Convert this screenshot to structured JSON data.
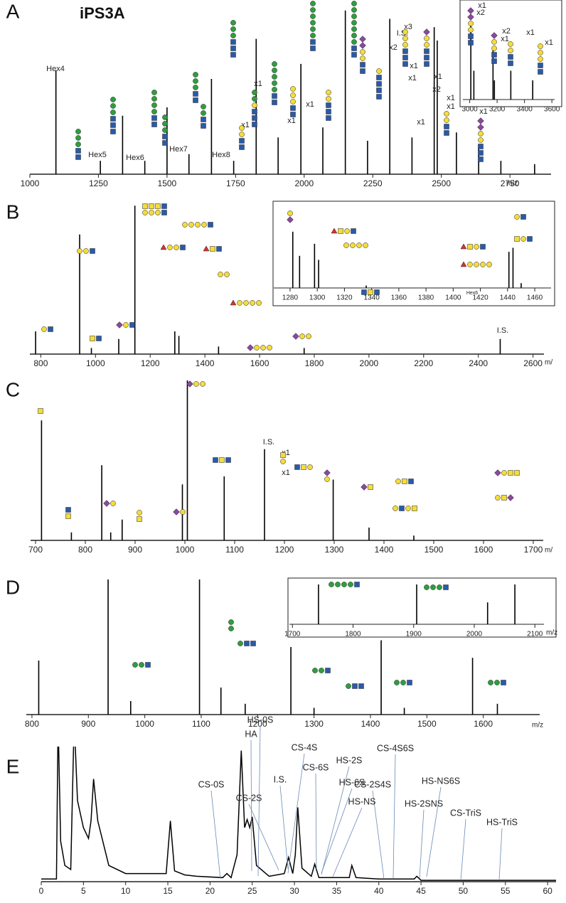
{
  "chart_data": [
    {
      "type": "spectrum",
      "panel": "A",
      "title": "iPS3A",
      "x_label": "m/z",
      "color": "#000000",
      "xlim": [
        1000,
        2900
      ],
      "xticks": [
        1000,
        1250,
        1500,
        1750,
        2000,
        2250,
        2500,
        2750
      ],
      "ylim": [
        0,
        100
      ],
      "x": [
        1095,
        1257,
        1338,
        1419,
        1500,
        1580,
        1662,
        1743,
        1825,
        1905,
        1988,
        2068,
        2150,
        2231,
        2312,
        2393,
        2474,
        2485,
        2555,
        2636,
        2717,
        2840
      ],
      "values": [
        62,
        8,
        35,
        8,
        40,
        12,
        57,
        8,
        81,
        22,
        66,
        28,
        98,
        20,
        93,
        22,
        88,
        80,
        25,
        18,
        8,
        6
      ],
      "annotations": [
        {
          "text": "Hex4",
          "color": "#3a63a8"
        },
        {
          "text": "Hex5",
          "color": "#3a63a8"
        },
        {
          "text": "Hex6",
          "color": "#3a63a8"
        },
        {
          "text": "Hex7",
          "color": "#3a63a8"
        },
        {
          "text": "Hex8",
          "color": "#3a63a8"
        },
        {
          "text": "I.S.",
          "color": "#111111"
        },
        {
          "text": "x1",
          "color": "#111111"
        },
        {
          "text": "x1",
          "color": "#111111"
        },
        {
          "text": "x1",
          "color": "#111111"
        },
        {
          "text": "x1",
          "color": "#111111"
        },
        {
          "text": "x3",
          "color": "#111111"
        },
        {
          "text": "x2",
          "color": "#111111"
        },
        {
          "text": "x1",
          "color": "#111111"
        },
        {
          "text": "x1",
          "color": "#111111"
        },
        {
          "text": "x1",
          "color": "#111111"
        },
        {
          "text": "x2",
          "color": "#111111"
        },
        {
          "text": "x1",
          "color": "#111111"
        },
        {
          "text": "x1",
          "color": "#111111"
        },
        {
          "text": "x1",
          "color": "#111111"
        },
        {
          "text": "x1",
          "color": "#111111"
        }
      ]
    },
    {
      "type": "spectrum",
      "color": "#000000",
      "xlim": [
        2950,
        3620
      ],
      "xticks": [
        3000,
        3200,
        3400,
        3600
      ],
      "ylim": [
        0,
        100
      ],
      "x": [
        3008,
        3030,
        3170,
        3180,
        3300,
        3460
      ],
      "values": [
        80,
        30,
        55,
        20,
        30,
        20
      ],
      "annotations": [
        {
          "text": "x1",
          "color": "#111111"
        },
        {
          "text": "x2",
          "color": "#111111"
        },
        {
          "text": "x2",
          "color": "#111111"
        },
        {
          "text": "x1",
          "color": "#111111"
        },
        {
          "text": "x1",
          "color": "#111111"
        },
        {
          "text": "x1",
          "color": "#111111"
        }
      ]
    },
    {
      "type": "spectrum",
      "panel": "B",
      "x_label": "m/",
      "color": "#000000",
      "xlim": [
        760,
        2640
      ],
      "xticks": [
        800,
        1000,
        1200,
        1400,
        1600,
        1800,
        2000,
        2200,
        2400,
        2600
      ],
      "ylim": [
        0,
        100
      ],
      "x": [
        781,
        942,
        985,
        1085,
        1144,
        1290,
        1305,
        1450,
        1763,
        2480
      ],
      "values": [
        15,
        79,
        4,
        10,
        98,
        15,
        12,
        5,
        4,
        10
      ],
      "annotations": [
        {
          "text": "I.S.",
          "color": "#111111"
        }
      ]
    },
    {
      "type": "spectrum",
      "color": "#000000",
      "xlim": [
        1268,
        1472
      ],
      "xticks": [
        1280,
        1300,
        1320,
        1340,
        1360,
        1380,
        1400,
        1420,
        1440,
        1460
      ],
      "ylim": [
        0,
        100
      ],
      "x": [
        1282,
        1287,
        1298,
        1301,
        1336,
        1441,
        1444,
        1450
      ],
      "values": [
        70,
        40,
        55,
        35,
        3,
        45,
        50,
        6
      ],
      "annotations": [
        {
          "text": "Hex6",
          "color": "#555555"
        }
      ]
    },
    {
      "type": "spectrum",
      "panel": "C",
      "x_label": "m/",
      "color": "#000000",
      "xlim": [
        690,
        1720
      ],
      "xticks": [
        700,
        800,
        900,
        1000,
        1100,
        1200,
        1300,
        1400,
        1500,
        1600,
        1700
      ],
      "ylim": [
        0,
        100
      ],
      "x": [
        712,
        772,
        833,
        851,
        874,
        995,
        1005,
        1079,
        1160,
        1298,
        1370,
        1460
      ],
      "values": [
        75,
        5,
        47,
        5,
        13,
        35,
        100,
        40,
        57,
        38,
        8,
        3
      ],
      "annotations": [
        {
          "text": "I.S.",
          "color": "#111111"
        },
        {
          "text": "x1",
          "color": "#111111"
        },
        {
          "text": "x1",
          "color": "#111111"
        }
      ]
    },
    {
      "type": "spectrum",
      "panel": "D",
      "x_label": "m/z",
      "color": "#000000",
      "xlim": [
        790,
        1700
      ],
      "xticks": [
        800,
        900,
        1000,
        1100,
        1200,
        1300,
        1400,
        1500,
        1600
      ],
      "ylim": [
        0,
        100
      ],
      "x": [
        812,
        935,
        975,
        1097,
        1135,
        1178,
        1259,
        1300,
        1419,
        1460,
        1581,
        1625
      ],
      "values": [
        40,
        100,
        10,
        100,
        20,
        8,
        50,
        5,
        55,
        5,
        42,
        8
      ]
    },
    {
      "type": "spectrum",
      "x_label": "m/z",
      "color": "#000000",
      "xlim": [
        1695,
        2115
      ],
      "xticks": [
        1700,
        1800,
        1900,
        2000,
        2100
      ],
      "ylim": [
        0,
        100
      ],
      "x": [
        1743,
        1905,
        2022,
        2067
      ],
      "values": [
        100,
        100,
        55,
        100
      ]
    },
    {
      "type": "line",
      "panel": "E",
      "color": "#000000",
      "xlim": [
        0,
        61
      ],
      "xticks": [
        0,
        5,
        10,
        15,
        20,
        25,
        30,
        35,
        40,
        45,
        50,
        55,
        60
      ],
      "ylim": [
        0,
        100
      ],
      "x": [
        0,
        1.8,
        2.0,
        2.3,
        2.8,
        3.5,
        3.9,
        4.3,
        5.0,
        5.6,
        5.9,
        6.2,
        6.7,
        8,
        10,
        14.8,
        15.3,
        15.8,
        17,
        18.4,
        21.5,
        22,
        22.5,
        23.2,
        23.7,
        24.1,
        24.4,
        24.7,
        25,
        25.5,
        27,
        28.8,
        29.3,
        29.8,
        30.1,
        30.4,
        30.9,
        32,
        32.4,
        32.9,
        33.5,
        36.5,
        36.8,
        37.3,
        40,
        44.2,
        44.5,
        45,
        50,
        61
      ],
      "values": [
        2,
        2,
        120,
        30,
        12,
        9,
        120,
        60,
        40,
        32,
        45,
        76,
        45,
        12,
        6,
        6,
        45,
        8,
        5,
        4,
        3,
        6,
        3,
        20,
        97,
        40,
        46,
        40,
        48,
        12,
        4,
        6,
        18,
        6,
        20,
        55,
        10,
        4,
        13,
        3,
        3,
        3,
        12,
        3,
        2,
        2,
        4,
        1,
        1,
        1
      ],
      "annotations": [
        {
          "text": "HS-0S",
          "color": "#e0403a"
        },
        {
          "text": "HA",
          "color": "#d89a2a"
        },
        {
          "text": "CS-4S",
          "color": "#3a4a6b"
        },
        {
          "text": "HS-2S",
          "color": "#e0403a"
        },
        {
          "text": "CS-4S6S",
          "color": "#3a4a6b"
        },
        {
          "text": "CS-6S",
          "color": "#3a4a6b"
        },
        {
          "text": "I.S.",
          "color": "#111111"
        },
        {
          "text": "CS-0S",
          "color": "#3a4a6b"
        },
        {
          "text": "CS-2S",
          "color": "#3a4a6b"
        },
        {
          "text": "HS-6S",
          "color": "#e0403a"
        },
        {
          "text": "CS-2S4S",
          "color": "#3a4a6b"
        },
        {
          "text": "HS-NS6S",
          "color": "#e0403a"
        },
        {
          "text": "HS-NS",
          "color": "#e0403a"
        },
        {
          "text": "HS-2SNS",
          "color": "#e0403a"
        },
        {
          "text": "CS-TriS",
          "color": "#3a4a6b"
        },
        {
          "text": "HS-TriS",
          "color": "#e0403a"
        }
      ]
    }
  ]
}
